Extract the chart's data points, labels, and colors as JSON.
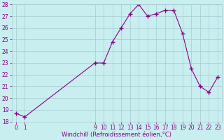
{
  "x": [
    0,
    1,
    9,
    10,
    11,
    12,
    13,
    14,
    15,
    16,
    17,
    18,
    19,
    20,
    21,
    22,
    23
  ],
  "y": [
    18.7,
    18.4,
    23.0,
    23.0,
    24.8,
    26.0,
    27.2,
    28.0,
    27.0,
    27.2,
    27.5,
    27.5,
    25.5,
    22.5,
    21.0,
    20.5,
    21.8
  ],
  "xlim": [
    -0.5,
    23.5
  ],
  "ylim": [
    18,
    28
  ],
  "yticks": [
    18,
    19,
    20,
    21,
    22,
    23,
    24,
    25,
    26,
    27,
    28
  ],
  "xticks": [
    0,
    1,
    9,
    10,
    11,
    12,
    13,
    14,
    15,
    16,
    17,
    18,
    19,
    20,
    21,
    22,
    23
  ],
  "xlabel": "Windchill (Refroidissement éolien,°C)",
  "line_color": "#880088",
  "marker": "+",
  "bg_color": "#c8eef0",
  "grid_color": "#a8ccd0",
  "tick_color": "#880088",
  "label_fontsize": 6.0,
  "tick_fontsize": 5.5
}
